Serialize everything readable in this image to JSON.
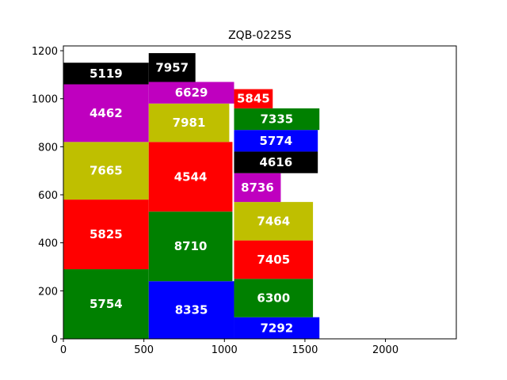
{
  "chart_data": {
    "type": "treemap-packing",
    "title": "ZQB-0225S",
    "xlim": [
      0,
      2440
    ],
    "ylim": [
      0,
      1220
    ],
    "x_ticks": [
      0,
      500,
      1000,
      1500,
      2000
    ],
    "y_ticks": [
      0,
      200,
      400,
      600,
      800,
      1000,
      1200
    ],
    "grid": false,
    "rectangles": [
      {
        "label": "5754",
        "x": 0,
        "y": 0,
        "w": 530,
        "h": 290,
        "color": "#008000"
      },
      {
        "label": "5825",
        "x": 0,
        "y": 290,
        "w": 530,
        "h": 290,
        "color": "#ff0000"
      },
      {
        "label": "7665",
        "x": 0,
        "y": 580,
        "w": 530,
        "h": 240,
        "color": "#bfbf00"
      },
      {
        "label": "4462",
        "x": 0,
        "y": 820,
        "w": 530,
        "h": 240,
        "color": "#bf00bf"
      },
      {
        "label": "5119",
        "x": 0,
        "y": 1060,
        "w": 530,
        "h": 90,
        "color": "#000000"
      },
      {
        "label": "8335",
        "x": 530,
        "y": 0,
        "w": 530,
        "h": 240,
        "color": "#0000ff"
      },
      {
        "label": "8710",
        "x": 530,
        "y": 240,
        "w": 520,
        "h": 290,
        "color": "#008000"
      },
      {
        "label": "4544",
        "x": 530,
        "y": 530,
        "w": 520,
        "h": 290,
        "color": "#ff0000"
      },
      {
        "label": "7981",
        "x": 530,
        "y": 820,
        "w": 500,
        "h": 160,
        "color": "#bfbf00"
      },
      {
        "label": "6629",
        "x": 530,
        "y": 980,
        "w": 530,
        "h": 90,
        "color": "#bf00bf"
      },
      {
        "label": "7957",
        "x": 530,
        "y": 1070,
        "w": 290,
        "h": 120,
        "color": "#000000"
      },
      {
        "label": "7292",
        "x": 1060,
        "y": 0,
        "w": 530,
        "h": 90,
        "color": "#0000ff"
      },
      {
        "label": "6300",
        "x": 1060,
        "y": 90,
        "w": 490,
        "h": 160,
        "color": "#008000"
      },
      {
        "label": "7405",
        "x": 1060,
        "y": 250,
        "w": 490,
        "h": 160,
        "color": "#ff0000"
      },
      {
        "label": "7464",
        "x": 1060,
        "y": 410,
        "w": 490,
        "h": 160,
        "color": "#bfbf00"
      },
      {
        "label": "8736",
        "x": 1060,
        "y": 570,
        "w": 290,
        "h": 120,
        "color": "#bf00bf"
      },
      {
        "label": "4616",
        "x": 1060,
        "y": 690,
        "w": 520,
        "h": 90,
        "color": "#000000"
      },
      {
        "label": "5774",
        "x": 1060,
        "y": 780,
        "w": 520,
        "h": 90,
        "color": "#0000ff"
      },
      {
        "label": "7335",
        "x": 1060,
        "y": 870,
        "w": 530,
        "h": 90,
        "color": "#008000"
      },
      {
        "label": "5845",
        "x": 1060,
        "y": 960,
        "w": 240,
        "h": 80,
        "color": "#ff0000"
      }
    ]
  }
}
